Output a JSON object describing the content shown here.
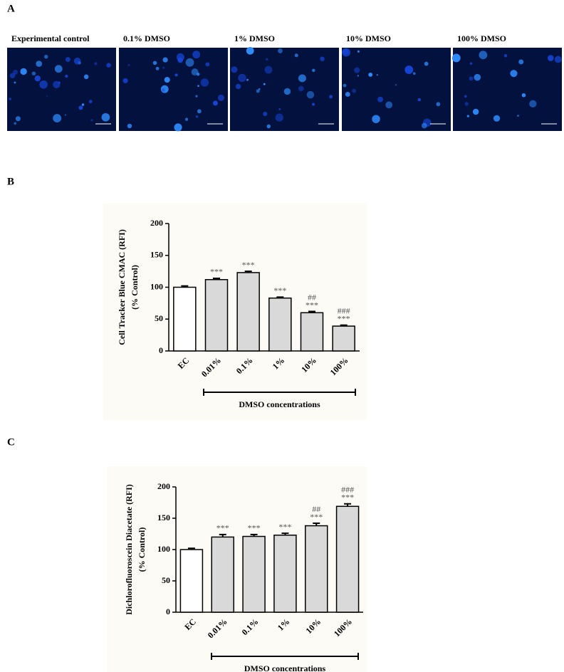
{
  "figure": {
    "panel_labels": [
      "A",
      "B",
      "C"
    ],
    "image_labels": [
      "Experimental control",
      "0.1% DMSO",
      "1% DMSO",
      "10% DMSO",
      "100% DMSO"
    ]
  },
  "chart_data": [
    {
      "type": "bar",
      "y_label": [
        "Cell Tracker  Blue CMAC (RFI)",
        "(% Control)"
      ],
      "categories": [
        "EC",
        "0.01%",
        "0.1%",
        "1%",
        "10%",
        "100%"
      ],
      "values": [
        100,
        112,
        123,
        83,
        60,
        39
      ],
      "errors": [
        2,
        2,
        2,
        1.5,
        2,
        1.5
      ],
      "colors": [
        "#ffffff",
        "#d9d9d9",
        "#d9d9d9",
        "#d9d9d9",
        "#d9d9d9",
        "#d9d9d9"
      ],
      "significance": [
        null,
        "***",
        "***",
        "***",
        "***",
        "***"
      ],
      "significance2": [
        null,
        null,
        null,
        null,
        "##",
        "###"
      ],
      "group_label": "DMSO concentrations",
      "ylim": [
        0,
        200
      ],
      "yticks": [
        0,
        50,
        100,
        150,
        200
      ]
    },
    {
      "type": "bar",
      "y_label": [
        "Dichlorofluoroscein Diacetate (RFI)",
        "(% Control)"
      ],
      "categories": [
        "EC",
        "0.01%",
        "0.1%",
        "1%",
        "10%",
        "100%"
      ],
      "values": [
        100,
        120,
        121,
        123,
        138,
        169
      ],
      "errors": [
        2,
        4,
        3,
        3,
        4,
        4
      ],
      "colors": [
        "#ffffff",
        "#d9d9d9",
        "#d9d9d9",
        "#d9d9d9",
        "#d9d9d9",
        "#d9d9d9"
      ],
      "significance": [
        null,
        "***",
        "***",
        "***",
        "***",
        "***"
      ],
      "significance2": [
        null,
        null,
        null,
        null,
        "##",
        "###"
      ],
      "group_label": "DMSO concentrations",
      "ylim": [
        0,
        200
      ],
      "yticks": [
        0,
        50,
        100,
        150,
        200
      ]
    }
  ]
}
